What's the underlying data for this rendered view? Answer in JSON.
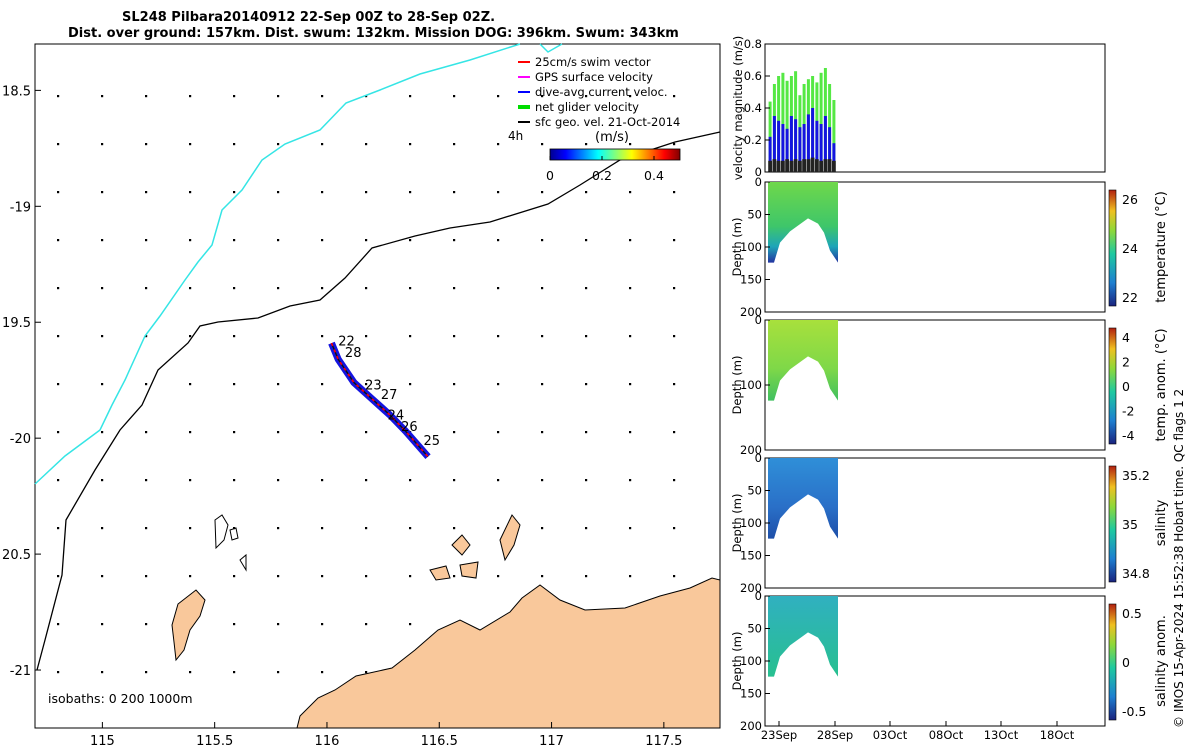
{
  "title": {
    "line1": "SL248 Pilbara20140912 22-Sep 00Z to 28-Sep 02Z.",
    "line2": "Dist. over ground: 157km. Dist. swum: 132km. Mission DOG: 396km. Swum: 343km"
  },
  "chart_data": [
    {
      "type": "scatter",
      "name": "map",
      "xlim": [
        114.7,
        117.75
      ],
      "ylim": [
        -21.25,
        -18.3
      ],
      "x_ticks": [
        115,
        115.5,
        116,
        116.5,
        117,
        117.5
      ],
      "x_tick_labels": [
        "115",
        "115.5",
        "116",
        "116.5",
        "117",
        "117.5"
      ],
      "y_ticks": [
        -18.5,
        -19,
        -19.5,
        -20,
        -20.5,
        -21
      ],
      "y_tick_labels": [
        "18.5",
        "-19",
        "19.5",
        "-20",
        "20.5",
        "-21"
      ],
      "legend": {
        "position": "top-right",
        "entries": [
          {
            "label": "25cm/s swim vector",
            "color": "#ff0000"
          },
          {
            "label": "GPS surface velocity",
            "color": "#ff00ff"
          },
          {
            "label": "dive-avg current veloc.",
            "color": "#0000ff"
          },
          {
            "label": "net glider velocity",
            "color": "#00dd00"
          },
          {
            "label": "sfc geo. vel. 21-Oct-2014",
            "color": "#000000"
          }
        ]
      },
      "scale_arrow_label": "4h",
      "colorbar": {
        "label": "(m/s)",
        "ticks": [
          0,
          0.2,
          0.4
        ],
        "tick_labels": [
          "0",
          "0.2",
          "0.4"
        ],
        "range": [
          0,
          0.5
        ]
      },
      "track": [
        [
          116.02,
          -19.59
        ],
        [
          116.05,
          -19.66
        ],
        [
          116.12,
          -19.76
        ],
        [
          116.2,
          -19.83
        ],
        [
          116.28,
          -19.9
        ],
        [
          116.35,
          -19.97
        ],
        [
          116.45,
          -20.08
        ]
      ],
      "day_labels": [
        {
          "label": "22",
          "lon": 116.05,
          "lat": -19.6
        },
        {
          "label": "28",
          "lon": 116.08,
          "lat": -19.65
        },
        {
          "label": "23",
          "lon": 116.17,
          "lat": -19.79
        },
        {
          "label": "27",
          "lon": 116.24,
          "lat": -19.83
        },
        {
          "label": "24",
          "lon": 116.27,
          "lat": -19.92
        },
        {
          "label": "26",
          "lon": 116.33,
          "lat": -19.97
        },
        {
          "label": "25",
          "lon": 116.43,
          "lat": -20.03
        }
      ],
      "isobaths_label": "isobaths: 0   200  1000m",
      "colors": {
        "land": "#f9c89b",
        "isobath_200": "#000000",
        "isobath_1000": "#35e5e5"
      }
    },
    {
      "type": "bar",
      "name": "velocity magnitude",
      "ylabel": "velocity magnitude (m/s)",
      "ylim": [
        0,
        0.8
      ],
      "y_ticks": [
        0,
        0.2,
        0.4,
        0.6,
        0.8
      ],
      "y_tick_labels": [
        "0",
        "0.2",
        "0.4",
        "0.6",
        "0.8"
      ],
      "series": [
        {
          "color": "#55e844",
          "values": [
            0.44,
            0.55,
            0.6,
            0.62,
            0.57,
            0.6,
            0.63,
            0.48,
            0.55,
            0.58,
            0.6,
            0.56,
            0.62,
            0.65,
            0.55,
            0.45
          ]
        },
        {
          "color": "#1414e0",
          "values": [
            0.22,
            0.35,
            0.32,
            0.3,
            0.27,
            0.35,
            0.33,
            0.28,
            0.3,
            0.36,
            0.4,
            0.32,
            0.3,
            0.35,
            0.28,
            0.18
          ]
        },
        {
          "color": "#222222",
          "values": [
            0.07,
            0.08,
            0.07,
            0.07,
            0.08,
            0.07,
            0.08,
            0.07,
            0.08,
            0.08,
            0.09,
            0.08,
            0.07,
            0.08,
            0.08,
            0.07
          ]
        }
      ]
    },
    {
      "type": "heatmap",
      "name": "temperature",
      "ylabel": "Depth (m)",
      "cbar_label": "temperature (°C)",
      "cbar_ticks": [
        "26",
        "24",
        "22"
      ],
      "y_tick_labels": [
        "0",
        "50",
        "100",
        "150",
        "200"
      ]
    },
    {
      "type": "heatmap",
      "name": "temp anomaly",
      "ylabel": "Depth (m)",
      "cbar_label": "temp. anom. (°C)",
      "cbar_ticks": [
        "4",
        "2",
        "0",
        "-2",
        "-4"
      ],
      "y_tick_labels": [
        "0",
        "100",
        "200"
      ]
    },
    {
      "type": "heatmap",
      "name": "salinity",
      "ylabel": "Depth (m)",
      "cbar_label": "salinity",
      "cbar_ticks": [
        "35.2",
        "35",
        "34.8"
      ],
      "y_tick_labels": [
        "0",
        "50",
        "100",
        "150",
        "200"
      ]
    },
    {
      "type": "heatmap",
      "name": "salinity anomaly",
      "ylabel": "Depth (m)",
      "cbar_label": "salinity anom.",
      "cbar_ticks": [
        "0.5",
        "0",
        "-0.5"
      ],
      "y_tick_labels": [
        "0",
        "50",
        "100",
        "150",
        "200"
      ],
      "x_tick_labels": [
        "23Sep",
        "28Sep",
        "03Oct",
        "08Oct",
        "13Oct",
        "18Oct"
      ]
    }
  ],
  "footer_note": "© IMOS 15-Apr-2024 15:52:38 Hobart time. QC flags 1  2"
}
